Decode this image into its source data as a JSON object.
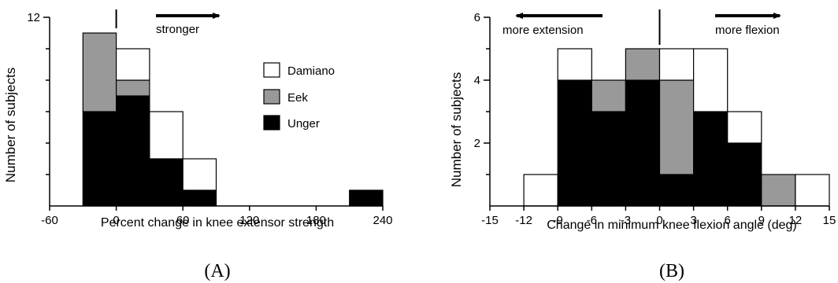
{
  "colors": {
    "Damiano": "#ffffff",
    "Eek": "#999999",
    "Unger": "#000000",
    "axis": "#000000"
  },
  "chart_data": [
    {
      "type": "bar",
      "stacked": true,
      "panel_label": "(A)",
      "title": "",
      "xlabel": "Percent change in knee extensor strength",
      "ylabel": "Number of subjects",
      "xlim": [
        -60,
        240
      ],
      "ylim": [
        0,
        12
      ],
      "xticks": [
        -60,
        0,
        60,
        120,
        180,
        240
      ],
      "yticks": [
        12
      ],
      "yminor_ticks": [
        2,
        4,
        6,
        8,
        10
      ],
      "bin_width": 30,
      "bins": [
        -30,
        0,
        30,
        60,
        210
      ],
      "series": [
        {
          "name": "Unger",
          "values": [
            6,
            7,
            3,
            1,
            1
          ]
        },
        {
          "name": "Eek",
          "values": [
            5,
            1,
            0,
            0,
            0
          ]
        },
        {
          "name": "Damiano",
          "values": [
            0,
            2,
            3,
            2,
            0
          ]
        }
      ],
      "legend": {
        "entries": [
          "Damiano",
          "Eek",
          "Unger"
        ],
        "placement": "upper-right"
      },
      "annotations": {
        "arrow_text": "stronger",
        "arrow_direction": "right",
        "zero_marker": 0
      },
      "grid": false
    },
    {
      "type": "bar",
      "stacked": true,
      "panel_label": "(B)",
      "title": "",
      "xlabel": "Change in minimum knee flexion angle (deg)",
      "ylabel": "Number of subjects",
      "xlim": [
        -15,
        15
      ],
      "ylim": [
        0,
        6
      ],
      "xticks": [
        -15,
        -12,
        -9,
        -6,
        -3,
        0,
        3,
        6,
        9,
        12,
        15
      ],
      "yticks": [
        2,
        4,
        6
      ],
      "yminor_ticks": [
        1,
        3,
        5
      ],
      "bin_width": 3,
      "bins": [
        -12,
        -9,
        -6,
        -3,
        0,
        3,
        6,
        9,
        12
      ],
      "series": [
        {
          "name": "Unger",
          "values": [
            0,
            4,
            3,
            4,
            1,
            3,
            2,
            0,
            0
          ]
        },
        {
          "name": "Eek",
          "values": [
            0,
            0,
            1,
            1,
            3,
            0,
            0,
            1,
            0
          ]
        },
        {
          "name": "Damiano",
          "values": [
            1,
            1,
            0,
            0,
            1,
            2,
            1,
            0,
            1
          ]
        }
      ],
      "annotations": {
        "left_arrow_text": "more extension",
        "right_arrow_text": "more flexion",
        "zero_marker": 0
      },
      "grid": false
    }
  ]
}
